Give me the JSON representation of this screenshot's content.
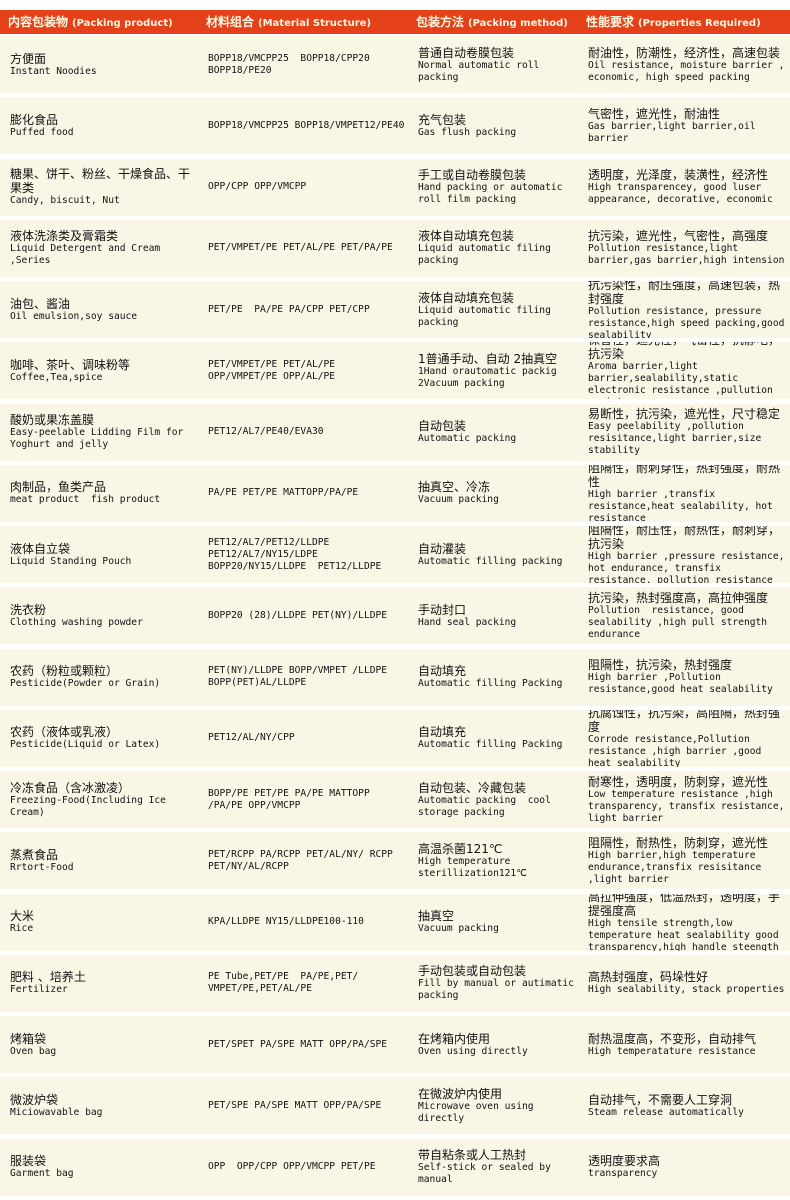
{
  "header": {
    "colors": {
      "header_bg": "#e4401a",
      "row_bg": "#faf6e6"
    },
    "columns": [
      {
        "cn": "内容包装物",
        "en": "(Packing product)"
      },
      {
        "cn": "材料组合",
        "en": "(Material Structure)"
      },
      {
        "cn": "包装方法",
        "en": "(Packing  method)"
      },
      {
        "cn": "性能要求",
        "en": "(Properties Required)"
      }
    ]
  },
  "rows": [
    {
      "product": {
        "cn": "方便面",
        "en": "Instant Noodies"
      },
      "material": "BOPP18/VMCPP25  BOPP18/CPP20 BOPP18/PE20",
      "method": {
        "cn": "普通自动卷膜包装",
        "en": "Normal automatic roll packing"
      },
      "properties": {
        "cn": "耐油性，防潮性，经济性，高速包装",
        "en": "Oil resistance, moisture barrier , economic, high speed packing"
      }
    },
    {
      "product": {
        "cn": "膨化食品",
        "en": "Puffed food"
      },
      "material": "BOPP18/VMCPP25 BOPP18/VMPET12/PE40",
      "method": {
        "cn": "充气包装",
        "en": "Gas flush packing"
      },
      "properties": {
        "cn": "气密性，遮光性，耐油性",
        "en": "Gas barrier,light barrier,oil barrier"
      }
    },
    {
      "product": {
        "cn": "糖果、饼干、粉丝、干燥食品、干果类",
        "en": "Candy, biscuit, Nut"
      },
      "material": "OPP/CPP OPP/VMCPP",
      "method": {
        "cn": "手工或自动卷膜包装",
        "en": "Hand packing or automatic roll film packing"
      },
      "properties": {
        "cn": "透明度，光泽度，装潢性，经济性",
        "en": "High transparencey, good luser appearance, decorative, economic"
      }
    },
    {
      "product": {
        "cn": "液体洗涤类及膏霜类",
        "en": "Liquid Detergent and Cream ,Series"
      },
      "material": "PET/VMPET/PE PET/AL/PE PET/PA/PE",
      "method": {
        "cn": "液体自动填充包装",
        "en": "Liquid automatic filing packing"
      },
      "properties": {
        "cn": "抗污染，遮光性，气密性，高强度",
        "en": "Pollution resistance,light barrier,gas barrier,high intension"
      }
    },
    {
      "product": {
        "cn": "油包、酱油",
        "en": "Oil emulsion,soy sauce"
      },
      "material": "PET/PE  PA/PE PA/CPP PET/CPP",
      "method": {
        "cn": "液体自动填充包装",
        "en": "Liquid automatic filing packing"
      },
      "properties": {
        "cn": "抗污染性，耐压强度，高速包装，热封强度",
        "en": "Pollution resistance, pressure resistance,high speed packing,good sealability"
      }
    },
    {
      "product": {
        "cn": "咖啡、茶叶、调味粉等",
        "en": "Coffee,Tea,spice"
      },
      "material": "PET/VMPET/PE PET/AL/PE OPP/VMPET/PE OPP/AL/PE",
      "method": {
        "cn": "1普通手动、自动 2抽真空",
        "en": "1Hand orautomatic packig 2Vacuum packing"
      },
      "properties": {
        "cn": "保香性，遮光性，气密性，抗静电，抗污染",
        "en": "Aroma barrier,light barrier,sealability,static electronic resistance ,pullution resistance"
      }
    },
    {
      "product": {
        "cn": "酸奶或果冻盖膜",
        "en": "Easy-peelable Lidding Film for Yoghurt and jelly"
      },
      "material": "PET12/AL7/PE40/EVA30",
      "method": {
        "cn": "自动包装",
        "en": "Automatic packing"
      },
      "properties": {
        "cn": "易断性，抗污染，遮光性，尺寸稳定",
        "en": "Easy peelability ,pollution resisitance,light barrier,size stability"
      }
    },
    {
      "product": {
        "cn": "肉制品，鱼类产品",
        "en": "meat product  fish product"
      },
      "material": "PA/PE PET/PE MATTOPP/PA/PE",
      "method": {
        "cn": "抽真空、冷冻",
        "en": "Vacuum packing"
      },
      "properties": {
        "cn": "阻隔性，耐刺穿性，热封强度，耐热性",
        "en": "High barrier ,transfix resistance,heat sealability, hot resistance"
      }
    },
    {
      "product": {
        "cn": "液体自立袋",
        "en": "Liquid Standing Pouch"
      },
      "material": "PET12/AL7/PET12/LLDPE PET12/AL7/NY15/LDPE BOPP20/NY15/LLDPE  PET12/LLDPE",
      "method": {
        "cn": "自动灌装",
        "en": "Automatic filling packing"
      },
      "properties": {
        "cn": "阻隔性，耐压性，耐热性，耐刺穿，抗污染",
        "en": "High barrier ,pressure resistance, hot endurance, transfix resistance, pollution resistance"
      }
    },
    {
      "product": {
        "cn": "洗衣粉",
        "en": "Clothing washing powder"
      },
      "material": "BOPP20 (28)/LLDPE PET(NY)/LLDPE",
      "method": {
        "cn": "手动封口",
        "en": "Hand seal packing"
      },
      "properties": {
        "cn": "抗污染，热封强度高，高拉伸强度",
        "en": "Pollution  resistance, good sealability ,high pull strength endurance"
      }
    },
    {
      "product": {
        "cn": "农药（粉粒或颗粒）",
        "en": "Pesticide(Powder or Grain)"
      },
      "material": "PET(NY)/LLDPE BOPP/VMPET /LLDPE BOPP(PET)AL/LLDPE",
      "method": {
        "cn": "自动填充",
        "en": "Automatic filling Packing"
      },
      "properties": {
        "cn": "阻隔性，抗污染，热封强度",
        "en": "High barrier ,Pollution resistance,good heat sealability"
      }
    },
    {
      "product": {
        "cn": "农药（液体或乳液）",
        "en": "Pesticide(Liquid or Latex)"
      },
      "material": "PET12/AL/NY/CPP",
      "method": {
        "cn": "自动填充",
        "en": "Automatic filling Packing"
      },
      "properties": {
        "cn": "抗腐蚀性，抗污染，高阻隔，热封强度",
        "en": "Corrode resistance,Pollution resistance ,high barrier ,good heat sealability"
      }
    },
    {
      "product": {
        "cn": "冷冻食品（含冰激凌）",
        "en": "Freezing-Food(Including Ice Cream)"
      },
      "material": "BOPP/PE PET/PE PA/PE MATTOPP /PA/PE OPP/VMCPP",
      "method": {
        "cn": "自动包装、冷藏包装",
        "en": "Automatic packing  cool storage packing"
      },
      "properties": {
        "cn": "耐寒性，透明度，防刺穿，遮光性",
        "en": "Low temperature resistance ,high transparency, transfix resistance, light barrier"
      }
    },
    {
      "product": {
        "cn": "蒸煮食品",
        "en": "Rrtort-Food"
      },
      "material": "PET/RCPP PA/RCPP PET/AL/NY/ RCPP PET/NY/AL/RCPP",
      "method": {
        "cn": "高温杀菌121℃",
        "en": "High temperature sterillization121℃"
      },
      "properties": {
        "cn": "阻隔性，耐热性，防刺穿，遮光性",
        "en": "High barrier,high temperature endurance,transfix resisitance ,light barrier"
      }
    },
    {
      "product": {
        "cn": "大米",
        "en": "Rice"
      },
      "material": "KPA/LLDPE NY15/LLDPE100-110",
      "method": {
        "cn": "抽真空",
        "en": "Vacuum packing"
      },
      "properties": {
        "cn": "高拉伸强度，低温热封，透明度，手提强度高",
        "en": "High tensile strength,low temperature heat sealability good transparency,high handle steength"
      }
    },
    {
      "product": {
        "cn": "肥料 、培养土",
        "en": "Fertilizer"
      },
      "material": "PE Tube,PET/PE  PA/PE,PET/ VMPET/PE,PET/AL/PE",
      "method": {
        "cn": "手动包装或自动包装",
        "en": "Fill by manual or autimatic packing"
      },
      "properties": {
        "cn": "高热封强度，码垛性好",
        "en": "High sealability, stack properties"
      }
    },
    {
      "product": {
        "cn": "烤箱袋",
        "en": "Oven bag"
      },
      "material": "PET/SPET PA/SPE MATT OPP/PA/SPE",
      "method": {
        "cn": "在烤箱内使用",
        "en": "Oven using directly"
      },
      "properties": {
        "cn": "耐热温度高，不变形，自动排气",
        "en": "High temperatature resistance"
      }
    },
    {
      "product": {
        "cn": "微波炉袋",
        "en": "Miciowavable bag"
      },
      "material": "PET/SPE PA/SPE MATT OPP/PA/SPE",
      "method": {
        "cn": "在微波炉内使用",
        "en": "Microwave oven using directly"
      },
      "properties": {
        "cn": "自动排气，不需要人工穿洞",
        "en": "Steam release automatically"
      }
    },
    {
      "product": {
        "cn": "服装袋",
        "en": "Garment bag"
      },
      "material": "OPP  OPP/CPP OPP/VMCPP PET/PE",
      "method": {
        "cn": "带自粘条或人工热封",
        "en": "Self-stick or sealed by manual"
      },
      "properties": {
        "cn": "透明度要求高",
        "en": "transparency"
      }
    }
  ]
}
